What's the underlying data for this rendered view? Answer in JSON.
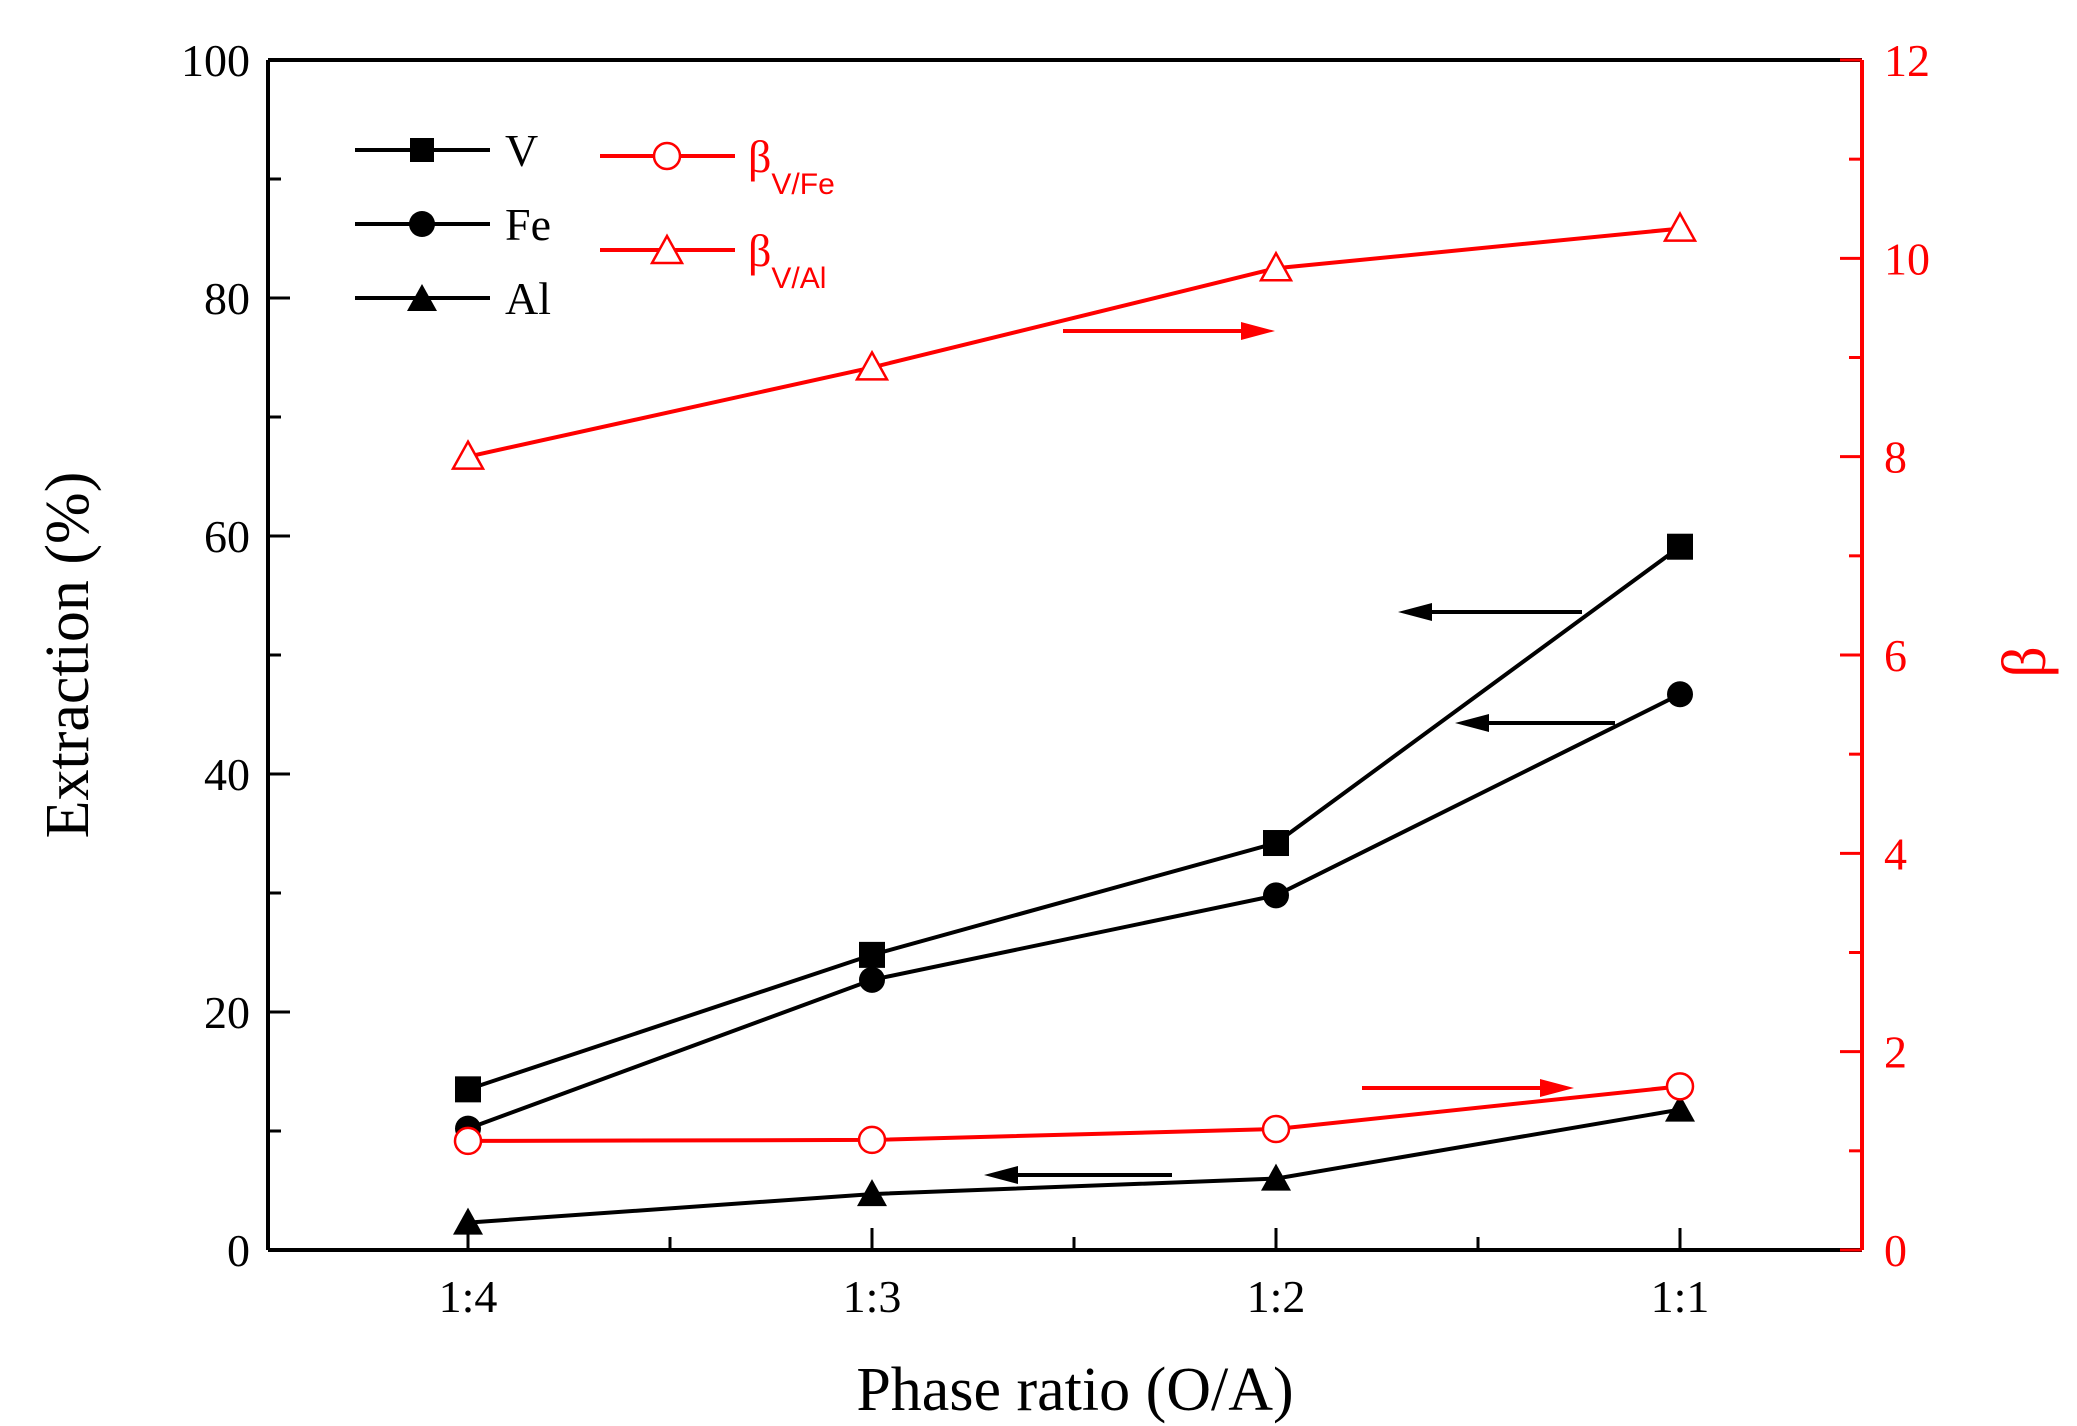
{
  "chart_data": {
    "type": "line",
    "categories": [
      "1:4",
      "1:3",
      "1:2",
      "1:1"
    ],
    "xlabel": "Phase ratio (O/A)",
    "ylabel": "Extraction (%)",
    "y2label": "β",
    "ylim": [
      0,
      100
    ],
    "y2lim": [
      0,
      12
    ],
    "yticks": [
      "0",
      "20",
      "40",
      "60",
      "80",
      "100"
    ],
    "y2ticks": [
      "0",
      "2",
      "4",
      "6",
      "8",
      "10",
      "12"
    ],
    "axis_color": "#000000",
    "right_axis_color": "#ff0000",
    "series_left": [
      {
        "name": "V",
        "marker": "square",
        "color": "#000000",
        "values": [
          13.5,
          24.8,
          34.2,
          59.1
        ]
      },
      {
        "name": "Fe",
        "marker": "circle",
        "color": "#000000",
        "values": [
          10.2,
          22.7,
          29.8,
          46.7
        ]
      },
      {
        "name": "Al",
        "marker": "triangle",
        "color": "#000000",
        "values": [
          2.3,
          4.7,
          6.0,
          11.8
        ]
      }
    ],
    "series_right": [
      {
        "name": "β",
        "sub": "V/Fe",
        "marker": "circle-open",
        "color": "#ff0000",
        "values": [
          1.1,
          1.11,
          1.22,
          1.65
        ]
      },
      {
        "name": "β",
        "sub": "V/Al",
        "marker": "triangle-open",
        "color": "#ff0000",
        "values": [
          8.0,
          8.9,
          9.9,
          10.3
        ]
      }
    ],
    "annotations": [
      {
        "type": "arrow",
        "direction": "right",
        "color": "#ff0000",
        "points_to": "right-axis",
        "series": "β V/Al"
      },
      {
        "type": "arrow",
        "direction": "right",
        "color": "#ff0000",
        "points_to": "right-axis",
        "series": "β V/Fe"
      },
      {
        "type": "arrow",
        "direction": "left",
        "color": "#000000",
        "points_to": "left-axis",
        "series": "V"
      },
      {
        "type": "arrow",
        "direction": "left",
        "color": "#000000",
        "points_to": "left-axis",
        "series": "Fe"
      },
      {
        "type": "arrow",
        "direction": "left",
        "color": "#000000",
        "points_to": "left-axis",
        "series": "Al"
      }
    ]
  }
}
